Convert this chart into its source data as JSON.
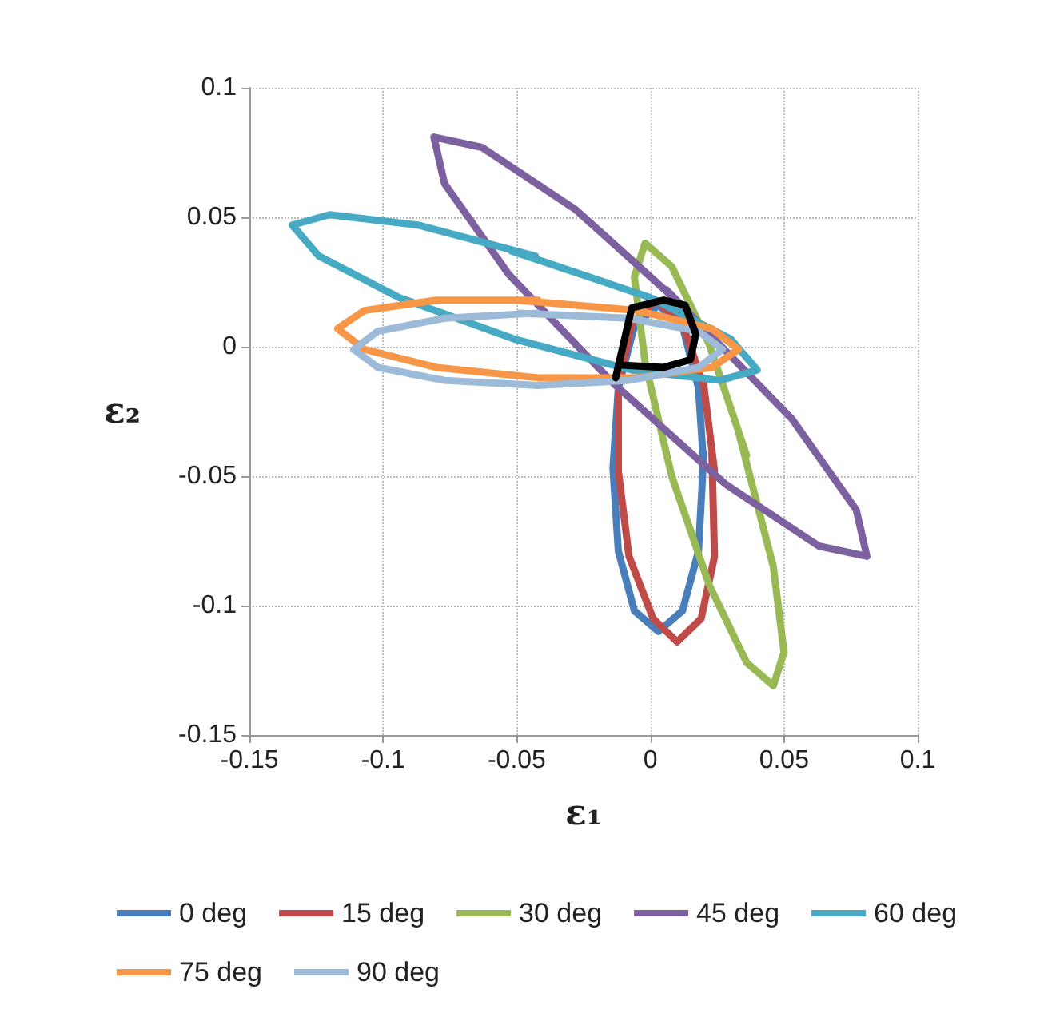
{
  "chart_data": {
    "type": "line",
    "xlabel": "ε₁",
    "ylabel": "ε₂",
    "xlim": [
      -0.15,
      0.1
    ],
    "xticks": [
      -0.15,
      -0.1,
      -0.05,
      0,
      0.05,
      0.1
    ],
    "ylim": [
      -0.15,
      0.1
    ],
    "yticks": [
      -0.15,
      -0.1,
      -0.05,
      0,
      0.05,
      0.1
    ],
    "grid": true,
    "legend": "bottom",
    "marker": "none",
    "line_style": "solid",
    "series": [
      {
        "name": "0 deg",
        "color": "#4a7ebb",
        "x": [
          0.02,
          0.018,
          0.012,
          0.003,
          -0.006,
          -0.012,
          -0.014,
          -0.012,
          -0.006,
          0.003,
          0.012,
          0.018,
          0.02
        ],
        "values": [
          -0.047,
          -0.016,
          0.008,
          0.016,
          0.008,
          -0.016,
          -0.047,
          -0.079,
          -0.102,
          -0.11,
          -0.102,
          -0.079,
          -0.041
        ]
      },
      {
        "name": "15 deg",
        "color": "#be4b48",
        "x": [
          0.024,
          0.02,
          0.012,
          0.002,
          -0.007,
          -0.012,
          -0.012,
          -0.008,
          0.001,
          0.01,
          0.019,
          0.024,
          0.023
        ],
        "values": [
          -0.048,
          -0.015,
          0.009,
          0.018,
          0.009,
          -0.015,
          -0.048,
          -0.081,
          -0.105,
          -0.114,
          -0.105,
          -0.081,
          -0.041
        ]
      },
      {
        "name": "30 deg",
        "color": "#98b954",
        "x": [
          0.036,
          0.022,
          0.008,
          -0.002,
          -0.006,
          -0.002,
          0.008,
          0.022,
          0.036,
          0.046,
          0.05,
          0.046,
          0.033
        ],
        "values": [
          -0.042,
          0.001,
          0.031,
          0.04,
          0.027,
          -0.006,
          -0.05,
          -0.092,
          -0.122,
          -0.131,
          -0.118,
          -0.085,
          -0.033
        ]
      },
      {
        "name": "45 deg",
        "color": "#7d60a0",
        "x": [
          0.014,
          -0.028,
          -0.063,
          -0.081,
          -0.077,
          -0.053,
          -0.014,
          0.028,
          0.063,
          0.081,
          0.077,
          0.053,
          0.006
        ],
        "values": [
          0.014,
          0.053,
          0.077,
          0.081,
          0.063,
          0.028,
          -0.014,
          -0.053,
          -0.077,
          -0.081,
          -0.063,
          -0.028,
          0.022
        ]
      },
      {
        "name": "60 deg",
        "color": "#46aac5",
        "x": [
          -0.043,
          -0.087,
          -0.12,
          -0.134,
          -0.124,
          -0.094,
          -0.051,
          -0.007,
          0.026,
          0.04,
          0.03,
          0.0,
          -0.052
        ],
        "values": [
          0.035,
          0.047,
          0.051,
          0.047,
          0.035,
          0.019,
          0.003,
          -0.009,
          -0.013,
          -0.009,
          0.003,
          0.019,
          0.037
        ]
      },
      {
        "name": "75 deg",
        "color": "#f79646",
        "x": [
          -0.042,
          -0.08,
          -0.107,
          -0.117,
          -0.107,
          -0.08,
          -0.042,
          -0.005,
          0.023,
          0.033,
          0.023,
          -0.005,
          -0.05
        ],
        "values": [
          0.018,
          0.018,
          0.014,
          0.007,
          -0.001,
          -0.008,
          -0.012,
          -0.012,
          -0.008,
          -0.001,
          0.007,
          0.014,
          0.018
        ]
      },
      {
        "name": "90 deg",
        "color": "#9dbad8",
        "x": [
          -0.042,
          -0.077,
          -0.102,
          -0.111,
          -0.102,
          -0.077,
          -0.042,
          -0.008,
          0.018,
          0.027,
          0.018,
          -0.008,
          -0.049
        ],
        "values": [
          0.013,
          0.011,
          0.006,
          -0.001,
          -0.008,
          -0.013,
          -0.015,
          -0.013,
          -0.008,
          -0.001,
          0.006,
          0.011,
          0.013
        ]
      },
      {
        "color": "#000000",
        "x": [
          -0.013,
          -0.007,
          0.005,
          0.013,
          0.017,
          0.015,
          0.005,
          -0.012
        ],
        "values": [
          -0.012,
          0.015,
          0.018,
          0.016,
          0.005,
          -0.005,
          -0.008,
          -0.007
        ]
      }
    ]
  }
}
